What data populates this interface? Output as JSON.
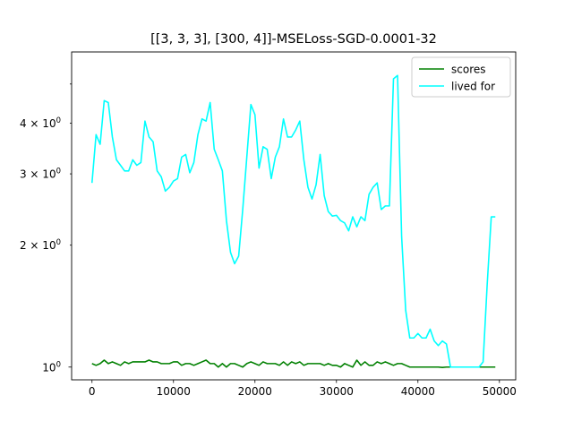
{
  "chart_data": {
    "type": "line",
    "title": "[[3, 3, 3], [300, 4]]-MSELoss-SGD-0.0001-32",
    "xlabel": "",
    "ylabel": "",
    "yscale": "log",
    "xlim": [
      -2500,
      52000
    ],
    "ylim": [
      0.93,
      6.0
    ],
    "grid": false,
    "legend_position": "top-right",
    "xticks": [
      {
        "value": 0,
        "label": "0"
      },
      {
        "value": 10000,
        "label": "10000"
      },
      {
        "value": 20000,
        "label": "20000"
      },
      {
        "value": 30000,
        "label": "30000"
      },
      {
        "value": 40000,
        "label": "40000"
      },
      {
        "value": 50000,
        "label": "50000"
      }
    ],
    "yticks_major": [
      {
        "value": 1,
        "mantissa": "10",
        "exponent": "0"
      }
    ],
    "yticks_minor": [
      {
        "value": 2,
        "mantissa": "2 × 10",
        "exponent": "0"
      },
      {
        "value": 3,
        "mantissa": "3 × 10",
        "exponent": "0"
      },
      {
        "value": 4,
        "mantissa": "4 × 10",
        "exponent": "0"
      },
      {
        "value": 5,
        "mantissa": "",
        "exponent": ""
      }
    ],
    "series": [
      {
        "name": "scores",
        "color": "#008000",
        "x": [
          0,
          500,
          1000,
          1500,
          2000,
          2500,
          3000,
          3500,
          4000,
          4500,
          5000,
          5500,
          6000,
          6500,
          7000,
          7500,
          8000,
          8500,
          9000,
          9500,
          10000,
          10500,
          11000,
          11500,
          12000,
          12500,
          13000,
          13500,
          14000,
          14500,
          15000,
          15500,
          16000,
          16500,
          17000,
          17500,
          18000,
          18500,
          19000,
          19500,
          20000,
          20500,
          21000,
          21500,
          22000,
          22500,
          23000,
          23500,
          24000,
          24500,
          25000,
          25500,
          26000,
          26500,
          27000,
          27500,
          28000,
          28500,
          29000,
          29500,
          30000,
          30500,
          31000,
          31500,
          32000,
          32500,
          33000,
          33500,
          34000,
          34500,
          35000,
          35500,
          36000,
          36500,
          37000,
          37500,
          38000,
          38500,
          39000,
          39500,
          40000,
          40500,
          41000,
          41500,
          42000,
          42500,
          43000,
          43500,
          44000,
          44500,
          45000,
          45500,
          46000,
          46500,
          47000,
          47500,
          48000,
          48500,
          49000,
          49500
        ],
        "values": [
          1.02,
          1.01,
          1.02,
          1.04,
          1.02,
          1.03,
          1.02,
          1.01,
          1.03,
          1.02,
          1.03,
          1.03,
          1.03,
          1.03,
          1.04,
          1.03,
          1.03,
          1.02,
          1.02,
          1.02,
          1.03,
          1.03,
          1.01,
          1.02,
          1.02,
          1.01,
          1.02,
          1.03,
          1.04,
          1.02,
          1.02,
          1.0,
          1.02,
          1.0,
          1.02,
          1.02,
          1.01,
          1.0,
          1.02,
          1.03,
          1.02,
          1.01,
          1.03,
          1.02,
          1.02,
          1.02,
          1.01,
          1.03,
          1.01,
          1.03,
          1.02,
          1.03,
          1.01,
          1.02,
          1.02,
          1.02,
          1.02,
          1.01,
          1.02,
          1.01,
          1.01,
          1.0,
          1.02,
          1.01,
          1.0,
          1.04,
          1.01,
          1.03,
          1.01,
          1.01,
          1.03,
          1.02,
          1.03,
          1.02,
          1.01,
          1.02,
          1.02,
          1.01,
          1.0,
          1.0,
          1.0,
          1.0,
          1.0,
          1.0,
          1.0,
          1.0,
          0.998,
          1.0,
          1.0,
          1.0,
          1.0,
          1.0,
          1.0,
          1.0,
          1.0,
          1.0,
          1.0,
          1.0,
          1.0,
          1.0
        ]
      },
      {
        "name": "lived for",
        "color": "#00ffff",
        "x": [
          0,
          500,
          1000,
          1500,
          2000,
          2500,
          3000,
          3500,
          4000,
          4500,
          5000,
          5500,
          6000,
          6500,
          7000,
          7500,
          8000,
          8500,
          9000,
          9500,
          10000,
          10500,
          11000,
          11500,
          12000,
          12500,
          13000,
          13500,
          14000,
          14500,
          15000,
          15500,
          16000,
          16500,
          17000,
          17500,
          18000,
          18500,
          19000,
          19500,
          20000,
          20500,
          21000,
          21500,
          22000,
          22500,
          23000,
          23500,
          24000,
          24500,
          25000,
          25500,
          26000,
          26500,
          27000,
          27500,
          28000,
          28500,
          29000,
          29500,
          30000,
          30500,
          31000,
          31500,
          32000,
          32500,
          33000,
          33500,
          34000,
          34500,
          35000,
          35500,
          36000,
          36500,
          37000,
          37500,
          38000,
          38500,
          39000,
          39500,
          40000,
          40500,
          41000,
          41500,
          42000,
          42500,
          43000,
          43500,
          44000,
          44500,
          45000,
          45500,
          46000,
          46500,
          47000,
          47500,
          48000,
          48500,
          49000,
          49500
        ],
        "values": [
          2.85,
          3.75,
          3.55,
          4.55,
          4.5,
          3.7,
          3.25,
          3.15,
          3.05,
          3.05,
          3.25,
          3.15,
          3.2,
          4.05,
          3.7,
          3.6,
          3.05,
          2.95,
          2.72,
          2.78,
          2.88,
          2.92,
          3.3,
          3.35,
          3.02,
          3.2,
          3.75,
          4.1,
          4.05,
          4.5,
          3.45,
          3.25,
          3.05,
          2.3,
          1.92,
          1.8,
          1.88,
          2.45,
          3.3,
          4.45,
          4.2,
          3.1,
          3.5,
          3.45,
          2.92,
          3.3,
          3.5,
          4.1,
          3.7,
          3.7,
          3.85,
          4.05,
          3.25,
          2.78,
          2.6,
          2.82,
          3.35,
          2.65,
          2.42,
          2.36,
          2.37,
          2.3,
          2.27,
          2.17,
          2.35,
          2.22,
          2.35,
          2.3,
          2.67,
          2.78,
          2.85,
          2.45,
          2.5,
          2.5,
          5.15,
          5.25,
          2.1,
          1.38,
          1.18,
          1.18,
          1.21,
          1.18,
          1.18,
          1.24,
          1.16,
          1.13,
          1.16,
          1.14,
          1.0,
          1.0,
          1.0,
          1.0,
          1.0,
          1.0,
          1.0,
          1.0,
          1.03,
          1.6,
          2.35,
          2.35
        ]
      }
    ]
  }
}
